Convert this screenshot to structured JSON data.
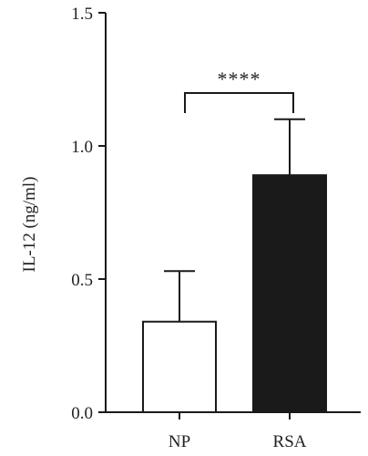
{
  "chart_data": {
    "type": "bar",
    "categories": [
      "NP",
      "RSA"
    ],
    "values": [
      0.34,
      0.89
    ],
    "errors_upper": [
      0.53,
      1.1
    ],
    "ylabel": "IL-12 (ng/ml)",
    "xlabel": "",
    "ylim": [
      0,
      1.5
    ],
    "yticks": [
      0.0,
      0.5,
      1.0,
      1.5
    ],
    "ytick_labels": [
      "0.0",
      "0.5",
      "1.0",
      "1.5"
    ],
    "bar_colors": [
      "#ffffff",
      "#1a1a1a"
    ],
    "bar_edge_color": "#1a1a1a",
    "grid": false,
    "significance": {
      "between": [
        "NP",
        "RSA"
      ],
      "label": "****"
    }
  }
}
